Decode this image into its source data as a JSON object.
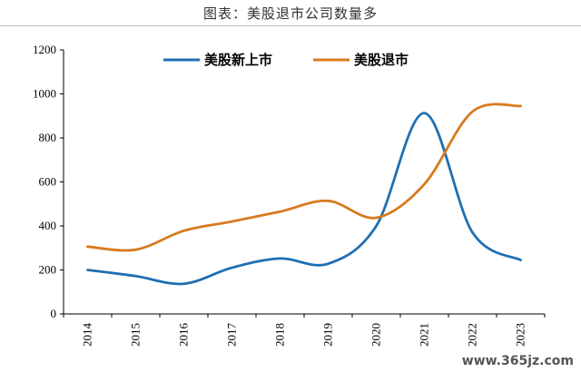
{
  "header": {
    "title": "图表：美股退市公司数量多"
  },
  "watermark": "www.365jz.com",
  "chart_data": {
    "type": "line",
    "categories": [
      "2014",
      "2015",
      "2016",
      "2017",
      "2018",
      "2019",
      "2020",
      "2021",
      "2022",
      "2023"
    ],
    "ylim": [
      0,
      1200
    ],
    "yticks": [
      0,
      200,
      400,
      600,
      800,
      1000,
      1200
    ],
    "grid": false,
    "legend_position": "top",
    "smooth": true,
    "series": [
      {
        "name": "美股新上市",
        "color": "#1f6fb4",
        "values": [
          200,
          172,
          137,
          210,
          252,
          228,
          400,
          913,
          370,
          245
        ]
      },
      {
        "name": "美股退市",
        "color": "#d87a1e",
        "values": [
          306,
          292,
          378,
          420,
          465,
          514,
          437,
          590,
          920,
          945
        ]
      }
    ]
  }
}
